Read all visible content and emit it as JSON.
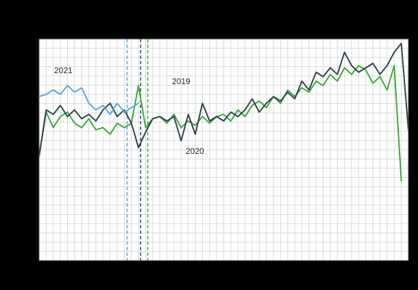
{
  "chart_data": {
    "type": "line",
    "title": "",
    "xlabel": "",
    "ylabel": "",
    "x_unit": "week",
    "x_range": [
      1,
      53
    ],
    "ylim": [
      0,
      100
    ],
    "grid": true,
    "plot_bg": "#ffffff",
    "grid_color": "#d9d9d9",
    "border_color": "#595959",
    "outer_bg": "#000000",
    "series": [
      {
        "name": "2019",
        "label": "2019",
        "color": "#3aaa35",
        "start_week": 1,
        "values": [
          47,
          67,
          60,
          65,
          67,
          62,
          60,
          64,
          59,
          60,
          57,
          62,
          60,
          62,
          79,
          60,
          64,
          65,
          62,
          66,
          60,
          63,
          61,
          65,
          62,
          65,
          66,
          63,
          68,
          65,
          70,
          72,
          69,
          74,
          71,
          77,
          74,
          78,
          76,
          81,
          79,
          84,
          81,
          87,
          84,
          88,
          86,
          80,
          83,
          77,
          88,
          36
        ]
      },
      {
        "name": "2020",
        "label": "2020",
        "color": "#2c4450",
        "start_week": 1,
        "values": [
          47,
          68,
          66,
          70,
          65,
          68,
          64,
          66,
          63,
          68,
          71,
          65,
          68,
          62,
          51,
          58,
          64,
          65,
          63,
          65,
          54,
          66,
          57,
          71,
          63,
          65,
          63,
          67,
          65,
          68,
          73,
          67,
          71,
          74,
          72,
          76,
          73,
          81,
          77,
          85,
          83,
          87,
          84,
          94,
          88,
          85,
          87,
          89,
          84,
          88,
          94,
          98,
          59
        ]
      },
      {
        "name": "2021",
        "label": "2021",
        "color": "#54a7dd",
        "start_week": 1,
        "values": [
          74,
          75,
          77,
          75,
          79,
          76,
          78,
          71,
          68,
          70,
          66,
          71,
          67,
          69,
          71
        ]
      }
    ],
    "marker_lines": [
      {
        "name": "marker-2021",
        "week": 13.4,
        "color": "#54a7dd",
        "style": "dashed"
      },
      {
        "name": "marker-2020",
        "week": 15.3,
        "color": "#1f4e79",
        "style": "dashed"
      },
      {
        "name": "marker-2019",
        "week": 16.3,
        "color": "#3aaa35",
        "style": "dashed"
      }
    ],
    "legend_position": "inline-annotations"
  },
  "annotations": {
    "label_2019": "2019",
    "label_2020": "2020",
    "label_2021": "2021"
  }
}
